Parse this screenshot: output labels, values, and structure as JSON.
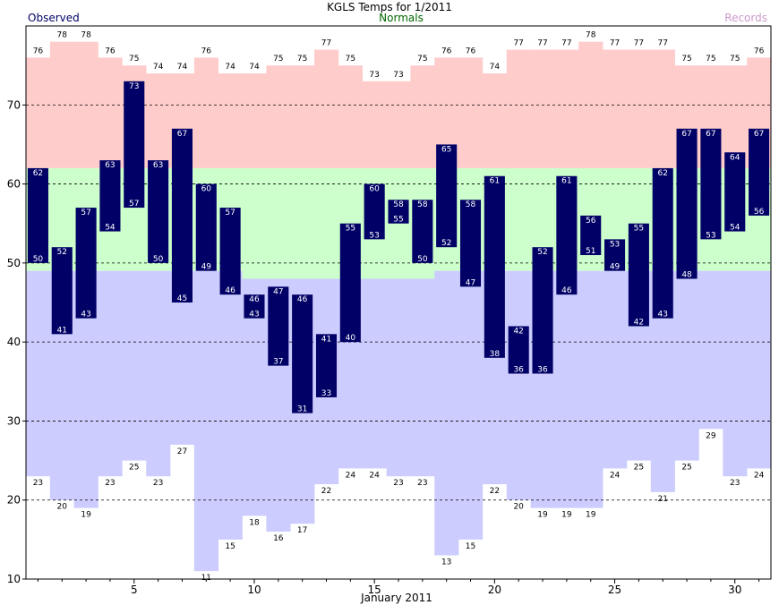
{
  "chart_data": {
    "type": "bar",
    "title": "KGLS Temps for 1/2011",
    "xlabel": "January 2011",
    "ylabel": "",
    "legend": {
      "left": "Observed",
      "center": "Normals",
      "right": "Records"
    },
    "colors": {
      "observed": "#000066",
      "normals": "#ccffcc",
      "record_high": "#ffcccc",
      "record_low": "#ccccff",
      "legend_observed": "#000066",
      "legend_normals": "#006600",
      "legend_records": "#cc99cc"
    },
    "xlim": [
      0.5,
      31.5
    ],
    "ylim": [
      10,
      80
    ],
    "yticks": [
      10,
      20,
      30,
      40,
      50,
      60,
      70
    ],
    "xticks": [
      5,
      10,
      15,
      20,
      25,
      30
    ],
    "grid": {
      "y_dashed": [
        20,
        30,
        40,
        50,
        60,
        70
      ]
    },
    "days": [
      1,
      2,
      3,
      4,
      5,
      6,
      7,
      8,
      9,
      10,
      11,
      12,
      13,
      14,
      15,
      16,
      17,
      18,
      19,
      20,
      21,
      22,
      23,
      24,
      25,
      26,
      27,
      28,
      29,
      30,
      31
    ],
    "record_high": [
      76,
      78,
      78,
      76,
      75,
      74,
      74,
      76,
      74,
      74,
      75,
      75,
      77,
      75,
      73,
      73,
      75,
      76,
      76,
      74,
      77,
      77,
      77,
      78,
      77,
      77,
      77,
      75,
      75,
      75,
      76
    ],
    "record_low": [
      23,
      20,
      19,
      23,
      25,
      23,
      27,
      11,
      15,
      18,
      16,
      17,
      22,
      24,
      24,
      23,
      23,
      13,
      15,
      22,
      20,
      19,
      19,
      19,
      24,
      25,
      21,
      25,
      29,
      23,
      24
    ],
    "normal_high": [
      62,
      62,
      62,
      62,
      62,
      62,
      62,
      62,
      62,
      62,
      62,
      62,
      62,
      62,
      62,
      62,
      62,
      62,
      62,
      62,
      62,
      62,
      62,
      62,
      62,
      62,
      62,
      62,
      62,
      62,
      62
    ],
    "normal_low": [
      49,
      49,
      49,
      49,
      49,
      49,
      49,
      49,
      49,
      48,
      48,
      48,
      48,
      48,
      48,
      48,
      48,
      49,
      49,
      49,
      49,
      49,
      49,
      49,
      49,
      49,
      49,
      49,
      49,
      49,
      49
    ],
    "observed_high": [
      62,
      52,
      57,
      63,
      73,
      63,
      67,
      60,
      57,
      46,
      47,
      46,
      41,
      55,
      60,
      58,
      58,
      65,
      58,
      61,
      42,
      52,
      61,
      56,
      53,
      55,
      62,
      67,
      67,
      64,
      67
    ],
    "observed_low": [
      50,
      41,
      43,
      54,
      57,
      50,
      45,
      49,
      46,
      43,
      37,
      31,
      33,
      40,
      53,
      55,
      50,
      52,
      47,
      38,
      36,
      36,
      46,
      51,
      49,
      42,
      43,
      48,
      53,
      54,
      56
    ]
  }
}
